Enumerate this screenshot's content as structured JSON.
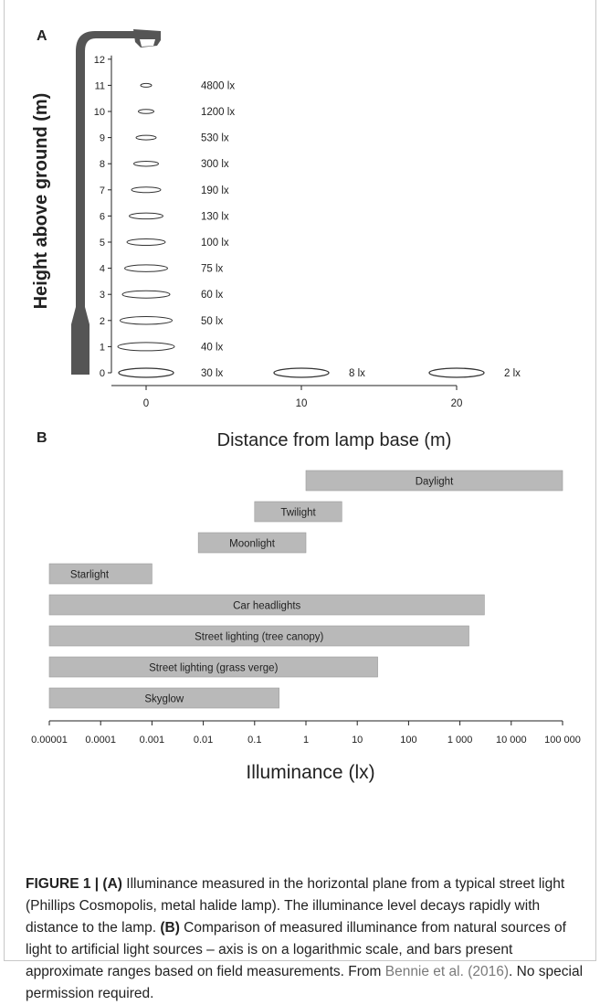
{
  "chart_data": [
    {
      "panel": "A",
      "type": "scatter",
      "xlabel": "Distance from lamp base (m)",
      "ylabel": "Height above ground (m)",
      "x_ticks": [
        0,
        10,
        20
      ],
      "y_ticks": [
        0,
        1,
        2,
        3,
        4,
        5,
        6,
        7,
        8,
        9,
        10,
        11,
        12
      ],
      "xlim": [
        0,
        20
      ],
      "ylim": [
        0,
        12
      ],
      "points": [
        {
          "x": 0,
          "y": 11,
          "label": "4800 lx"
        },
        {
          "x": 0,
          "y": 10,
          "label": "1200 lx"
        },
        {
          "x": 0,
          "y": 9,
          "label": "530 lx"
        },
        {
          "x": 0,
          "y": 8,
          "label": "300 lx"
        },
        {
          "x": 0,
          "y": 7,
          "label": "190 lx"
        },
        {
          "x": 0,
          "y": 6,
          "label": "130 lx"
        },
        {
          "x": 0,
          "y": 5,
          "label": "100 lx"
        },
        {
          "x": 0,
          "y": 4,
          "label": "75 lx"
        },
        {
          "x": 0,
          "y": 3,
          "label": "60 lx"
        },
        {
          "x": 0,
          "y": 2,
          "label": "50 lx"
        },
        {
          "x": 0,
          "y": 1,
          "label": "40 lx"
        },
        {
          "x": 0,
          "y": 0,
          "label": "30 lx"
        },
        {
          "x": 10,
          "y": 0,
          "label": "8 lx"
        },
        {
          "x": 20,
          "y": 0,
          "label": "2 lx"
        }
      ]
    },
    {
      "panel": "B",
      "type": "bar",
      "orientation": "horizontal",
      "xlabel": "Illuminance (lx)",
      "x_scale": "log",
      "xlim": [
        1e-05,
        100000
      ],
      "x_tick_labels": [
        "0.00001",
        "0.0001",
        "0.001",
        "0.01",
        "0.1",
        "1",
        "10",
        "100",
        "1 000",
        "10 000",
        "100 000"
      ],
      "bars": [
        {
          "label": "Daylight",
          "min": 1,
          "max": 100000
        },
        {
          "label": "Twilight",
          "min": 0.1,
          "max": 5
        },
        {
          "label": "Moonlight",
          "min": 0.008,
          "max": 1
        },
        {
          "label": "Starlight",
          "min": 1e-05,
          "max": 0.001
        },
        {
          "label": "Car headlights",
          "min": 1e-05,
          "max": 3000
        },
        {
          "label": "Street lighting (tree canopy)",
          "min": 1e-05,
          "max": 1500
        },
        {
          "label": "Street lighting (grass verge)",
          "min": 1e-05,
          "max": 25
        },
        {
          "label": "Skyglow",
          "min": 1e-05,
          "max": 0.3
        }
      ]
    }
  ],
  "panel_labels": {
    "a": "A",
    "b": "B"
  },
  "caption": {
    "lead": "FIGURE 1 | (A)",
    "part1": " Illuminance measured in the horizontal plane from a typical street light (Phillips Cosmopolis, metal halide lamp). The illuminance level decays rapidly with distance to the lamp. ",
    "b_label": "(B)",
    "part2": " Comparison of measured illuminance from natural sources of light to artificial light sources – axis is on a logarithmic scale, and bars present approximate ranges based on field measurements. From ",
    "citation": "Bennie et al. (2016)",
    "part3": ". No special permission required."
  },
  "colors": {
    "bar_fill": "#b9b9b9",
    "lamp": "#555555",
    "ink": "#222222"
  }
}
